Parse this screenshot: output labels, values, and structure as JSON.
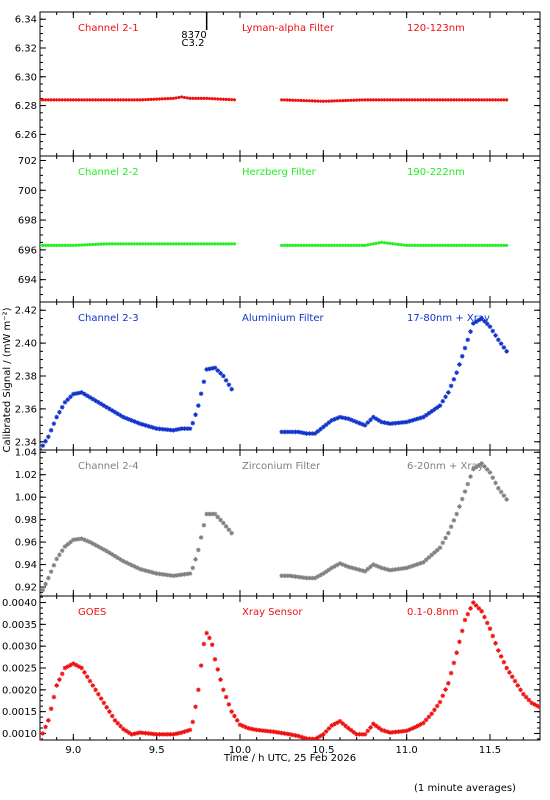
{
  "page": {
    "x_axis_label": "Time / h UTC, 25 Feb 2026",
    "y_axis_label": "Calibrated Signal / (mW m⁻²)",
    "footer_note": "(1 minute averages)",
    "event_marker": {
      "time": 9.8,
      "label_top": "8370",
      "label_bottom": "C3.2"
    }
  },
  "chart_data": [
    {
      "type": "scatter",
      "name": "channel-2-1",
      "labels": [
        "Channel 2-1",
        "Lyman-alpha Filter",
        "120-123nm"
      ],
      "color": "#ee1111",
      "xlim": [
        8.8,
        11.8
      ],
      "ylim": [
        6.245,
        6.345
      ],
      "yticks": [
        "6.26",
        "6.28",
        "6.30",
        "6.32",
        "6.34"
      ],
      "ytick_values": [
        6.26,
        6.28,
        6.3,
        6.32,
        6.34
      ],
      "segments": [
        {
          "x": [
            8.8,
            9.0,
            9.2,
            9.4,
            9.6,
            9.65,
            9.7,
            9.8,
            9.97
          ],
          "y": [
            6.284,
            6.284,
            6.284,
            6.284,
            6.285,
            6.286,
            6.285,
            6.285,
            6.284
          ]
        },
        {
          "x": [
            10.25,
            10.5,
            10.75,
            11.0,
            11.25,
            11.5,
            11.6
          ],
          "y": [
            6.284,
            6.283,
            6.284,
            6.284,
            6.284,
            6.284,
            6.284
          ]
        }
      ]
    },
    {
      "type": "scatter",
      "name": "channel-2-2",
      "labels": [
        "Channel 2-2",
        "Herzberg Filter",
        "190-222nm"
      ],
      "color": "#22ee22",
      "xlim": [
        8.8,
        11.8
      ],
      "ylim": [
        692.5,
        702.3
      ],
      "yticks": [
        "694",
        "696",
        "698",
        "700",
        "702"
      ],
      "ytick_values": [
        694,
        696,
        698,
        700,
        702
      ],
      "segments": [
        {
          "x": [
            8.8,
            9.0,
            9.2,
            9.4,
            9.6,
            9.8,
            9.97
          ],
          "y": [
            696.3,
            696.3,
            696.4,
            696.4,
            696.4,
            696.4,
            696.4
          ]
        },
        {
          "x": [
            10.25,
            10.5,
            10.75,
            10.85,
            11.0,
            11.25,
            11.5,
            11.6
          ],
          "y": [
            696.3,
            696.3,
            696.3,
            696.5,
            696.3,
            696.3,
            696.3,
            696.3
          ]
        }
      ]
    },
    {
      "type": "scatter",
      "name": "channel-2-3",
      "labels": [
        "Channel 2-3",
        "Aluminium Filter",
        "17-80nm + Xray"
      ],
      "color": "#1133cc",
      "xlim": [
        8.8,
        11.8
      ],
      "ylim": [
        2.335,
        2.425
      ],
      "yticks": [
        "2.34",
        "2.36",
        "2.38",
        "2.40",
        "2.42"
      ],
      "ytick_values": [
        2.34,
        2.36,
        2.38,
        2.4,
        2.42
      ],
      "segments": [
        {
          "x": [
            8.8,
            8.85,
            8.9,
            8.95,
            9.0,
            9.05,
            9.1,
            9.2,
            9.3,
            9.4,
            9.5,
            9.6,
            9.65,
            9.7,
            9.72,
            9.75,
            9.78,
            9.8,
            9.85,
            9.9,
            9.95
          ],
          "y": [
            2.335,
            2.343,
            2.355,
            2.364,
            2.369,
            2.37,
            2.367,
            2.361,
            2.355,
            2.351,
            2.348,
            2.347,
            2.348,
            2.348,
            2.352,
            2.362,
            2.375,
            2.384,
            2.385,
            2.38,
            2.372
          ]
        },
        {
          "x": [
            10.25,
            10.3,
            10.35,
            10.4,
            10.45,
            10.5,
            10.55,
            10.6,
            10.65,
            10.7,
            10.75,
            10.8,
            10.85,
            10.9,
            11.0,
            11.1,
            11.2,
            11.25,
            11.3,
            11.35,
            11.4,
            11.45,
            11.5,
            11.55,
            11.6
          ],
          "y": [
            2.346,
            2.346,
            2.346,
            2.345,
            2.345,
            2.349,
            2.353,
            2.355,
            2.354,
            2.352,
            2.35,
            2.355,
            2.352,
            2.351,
            2.352,
            2.355,
            2.362,
            2.37,
            2.382,
            2.397,
            2.412,
            2.415,
            2.41,
            2.402,
            2.395
          ]
        }
      ]
    },
    {
      "type": "scatter",
      "name": "channel-2-4",
      "labels": [
        "Channel 2-4",
        "Zirconium Filter",
        "6-20nm + Xray"
      ],
      "color": "#808080",
      "xlim": [
        8.8,
        11.8
      ],
      "ylim": [
        0.912,
        1.042
      ],
      "yticks": [
        "0.92",
        "0.94",
        "0.96",
        "0.98",
        "1.00",
        "1.02",
        "1.04"
      ],
      "ytick_values": [
        0.92,
        0.94,
        0.96,
        0.98,
        1.0,
        1.02,
        1.04
      ],
      "segments": [
        {
          "x": [
            8.8,
            8.85,
            8.9,
            8.95,
            9.0,
            9.05,
            9.1,
            9.2,
            9.3,
            9.4,
            9.5,
            9.6,
            9.65,
            9.7,
            9.72,
            9.75,
            9.78,
            9.8,
            9.85,
            9.9,
            9.95
          ],
          "y": [
            0.912,
            0.928,
            0.945,
            0.956,
            0.962,
            0.963,
            0.96,
            0.952,
            0.943,
            0.936,
            0.932,
            0.93,
            0.931,
            0.932,
            0.938,
            0.953,
            0.973,
            0.985,
            0.985,
            0.977,
            0.968
          ]
        },
        {
          "x": [
            10.25,
            10.3,
            10.35,
            10.4,
            10.45,
            10.5,
            10.55,
            10.6,
            10.65,
            10.7,
            10.75,
            10.8,
            10.85,
            10.9,
            11.0,
            11.1,
            11.2,
            11.25,
            11.3,
            11.35,
            11.4,
            11.45,
            11.5,
            11.55,
            11.6
          ],
          "y": [
            0.93,
            0.93,
            0.929,
            0.928,
            0.928,
            0.932,
            0.937,
            0.941,
            0.938,
            0.936,
            0.934,
            0.94,
            0.937,
            0.935,
            0.937,
            0.942,
            0.955,
            0.968,
            0.985,
            1.005,
            1.025,
            1.03,
            1.022,
            1.008,
            0.998
          ]
        }
      ]
    },
    {
      "type": "scatter",
      "name": "goes",
      "labels": [
        "GOES",
        "Xray Sensor",
        "0.1-0.8nm"
      ],
      "color": "#ee1111",
      "xlim": [
        8.8,
        11.8
      ],
      "ylim": [
        0.00085,
        0.00415
      ],
      "yticks": [
        "0.0010",
        "0.0015",
        "0.0020",
        "0.0025",
        "0.0030",
        "0.0035",
        "0.0040"
      ],
      "ytick_values": [
        0.001,
        0.0015,
        0.002,
        0.0025,
        0.003,
        0.0035,
        0.004
      ],
      "segments": [
        {
          "x": [
            8.8,
            8.85,
            8.9,
            8.95,
            9.0,
            9.05,
            9.1,
            9.15,
            9.2,
            9.25,
            9.3,
            9.35,
            9.4,
            9.5,
            9.6,
            9.65,
            9.7,
            9.72,
            9.75,
            9.78,
            9.8,
            9.83,
            9.85,
            9.9,
            9.95,
            10.0,
            10.05,
            10.1,
            10.2,
            10.3,
            10.35,
            10.4,
            10.45,
            10.5,
            10.55,
            10.6,
            10.65,
            10.7,
            10.75,
            10.78,
            10.8,
            10.85,
            10.9,
            11.0,
            11.05,
            11.1,
            11.15,
            11.2,
            11.25,
            11.3,
            11.35,
            11.4,
            11.45,
            11.5,
            11.55,
            11.6,
            11.65,
            11.7,
            11.75,
            11.8
          ],
          "y": [
            0.00085,
            0.0013,
            0.0021,
            0.0025,
            0.0026,
            0.0025,
            0.0022,
            0.0019,
            0.0016,
            0.0013,
            0.0011,
            0.00098,
            0.00102,
            0.00098,
            0.00098,
            0.00102,
            0.00108,
            0.0013,
            0.002,
            0.003,
            0.0033,
            0.0031,
            0.0027,
            0.002,
            0.0015,
            0.0012,
            0.00112,
            0.00108,
            0.00104,
            0.00098,
            0.00094,
            0.00088,
            0.00087,
            0.00098,
            0.00118,
            0.00128,
            0.00112,
            0.00098,
            0.00098,
            0.00112,
            0.00122,
            0.00108,
            0.00102,
            0.00106,
            0.00114,
            0.00124,
            0.00145,
            0.00172,
            0.00215,
            0.00285,
            0.0036,
            0.004,
            0.0038,
            0.0034,
            0.0029,
            0.0025,
            0.0022,
            0.0019,
            0.0017,
            0.0016
          ]
        }
      ]
    }
  ],
  "x_axis": {
    "xlim": [
      8.8,
      11.8
    ],
    "ticks": [
      "9.0",
      "9.5",
      "10.0",
      "10.5",
      "11.0",
      "11.5"
    ],
    "tick_values": [
      9.0,
      9.5,
      10.0,
      10.5,
      11.0,
      11.5
    ]
  }
}
